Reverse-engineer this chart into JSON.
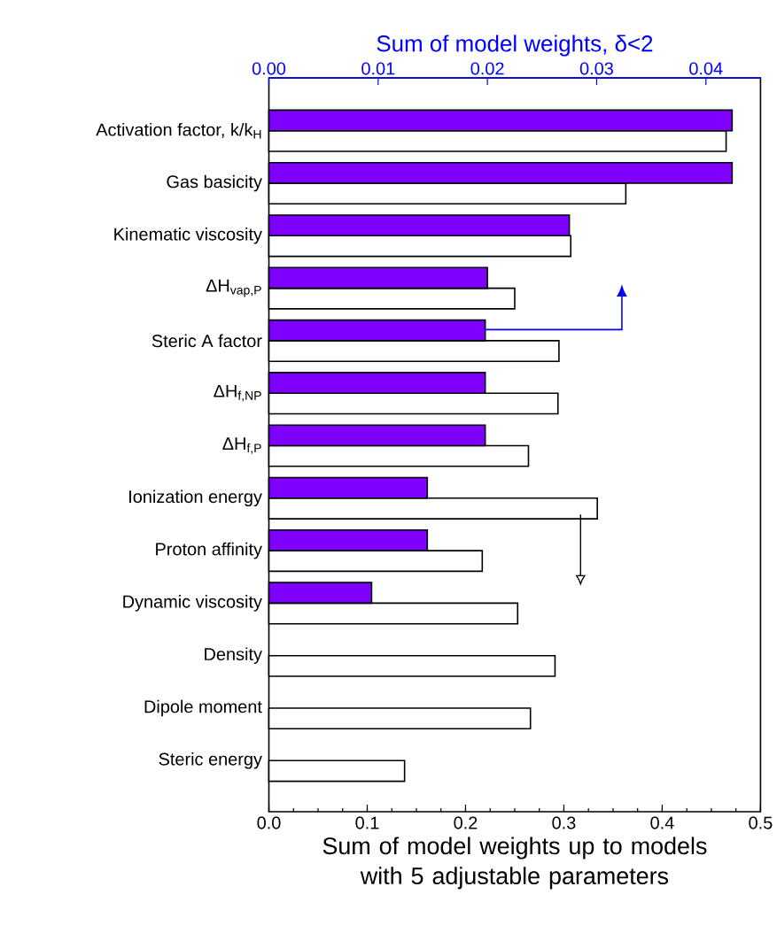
{
  "chart_data": {
    "type": "bar",
    "orientation": "horizontal",
    "xlabel": "Sum of model weights up to models with 5 adjustable parameters",
    "x2label": "Sum of model weights, δ<2",
    "categories": [
      "Activation factor, k/k$_{H}$",
      "Gas basicity",
      "Kinematic viscosity",
      "ΔH$_{vap,P}$",
      "Steric A factor",
      "ΔH$_{f,NP}$",
      "ΔH$_{f,P}$",
      "Ionization energy",
      "Proton affinity",
      "Dynamic viscosity",
      "Density",
      "Dipole moment",
      "Steric energy"
    ],
    "series": [
      {
        "color": "#8000ff",
        "axis": "x2",
        "values": [
          0.0424,
          0.0424,
          0.0275,
          0.02,
          0.0198,
          0.0198,
          0.0198,
          0.0145,
          0.0145,
          0.0094,
          null,
          null,
          null
        ]
      },
      {
        "color": "#ffffff",
        "values": [
          0.465,
          0.363,
          0.307,
          0.25,
          0.295,
          0.294,
          0.264,
          0.334,
          0.217,
          0.253,
          0.291,
          0.266,
          0.138
        ]
      }
    ],
    "xlim": [
      0,
      0.5
    ],
    "xticks": [
      {
        "value": 0,
        "label": "0.0"
      },
      {
        "value": 0.025,
        "label": null
      },
      {
        "value": 0.1,
        "label": "0.1"
      },
      {
        "value": 0.2,
        "label": "0.2"
      },
      {
        "value": 0.3,
        "label": "0.3"
      },
      {
        "value": 0.4,
        "label": "0.4"
      },
      {
        "value": 0.5,
        "label": "0.5"
      }
    ],
    "x2lim": [
      0,
      0.045
    ],
    "x2ticks": [
      {
        "value": 0,
        "label": "0.00"
      },
      {
        "value": 0.01,
        "label": "0.01"
      },
      {
        "value": 0.02,
        "label": "0.02"
      },
      {
        "value": 0.03,
        "label": "0.03"
      },
      {
        "value": 0.04,
        "label": "0.04"
      }
    ],
    "grid": false
  }
}
